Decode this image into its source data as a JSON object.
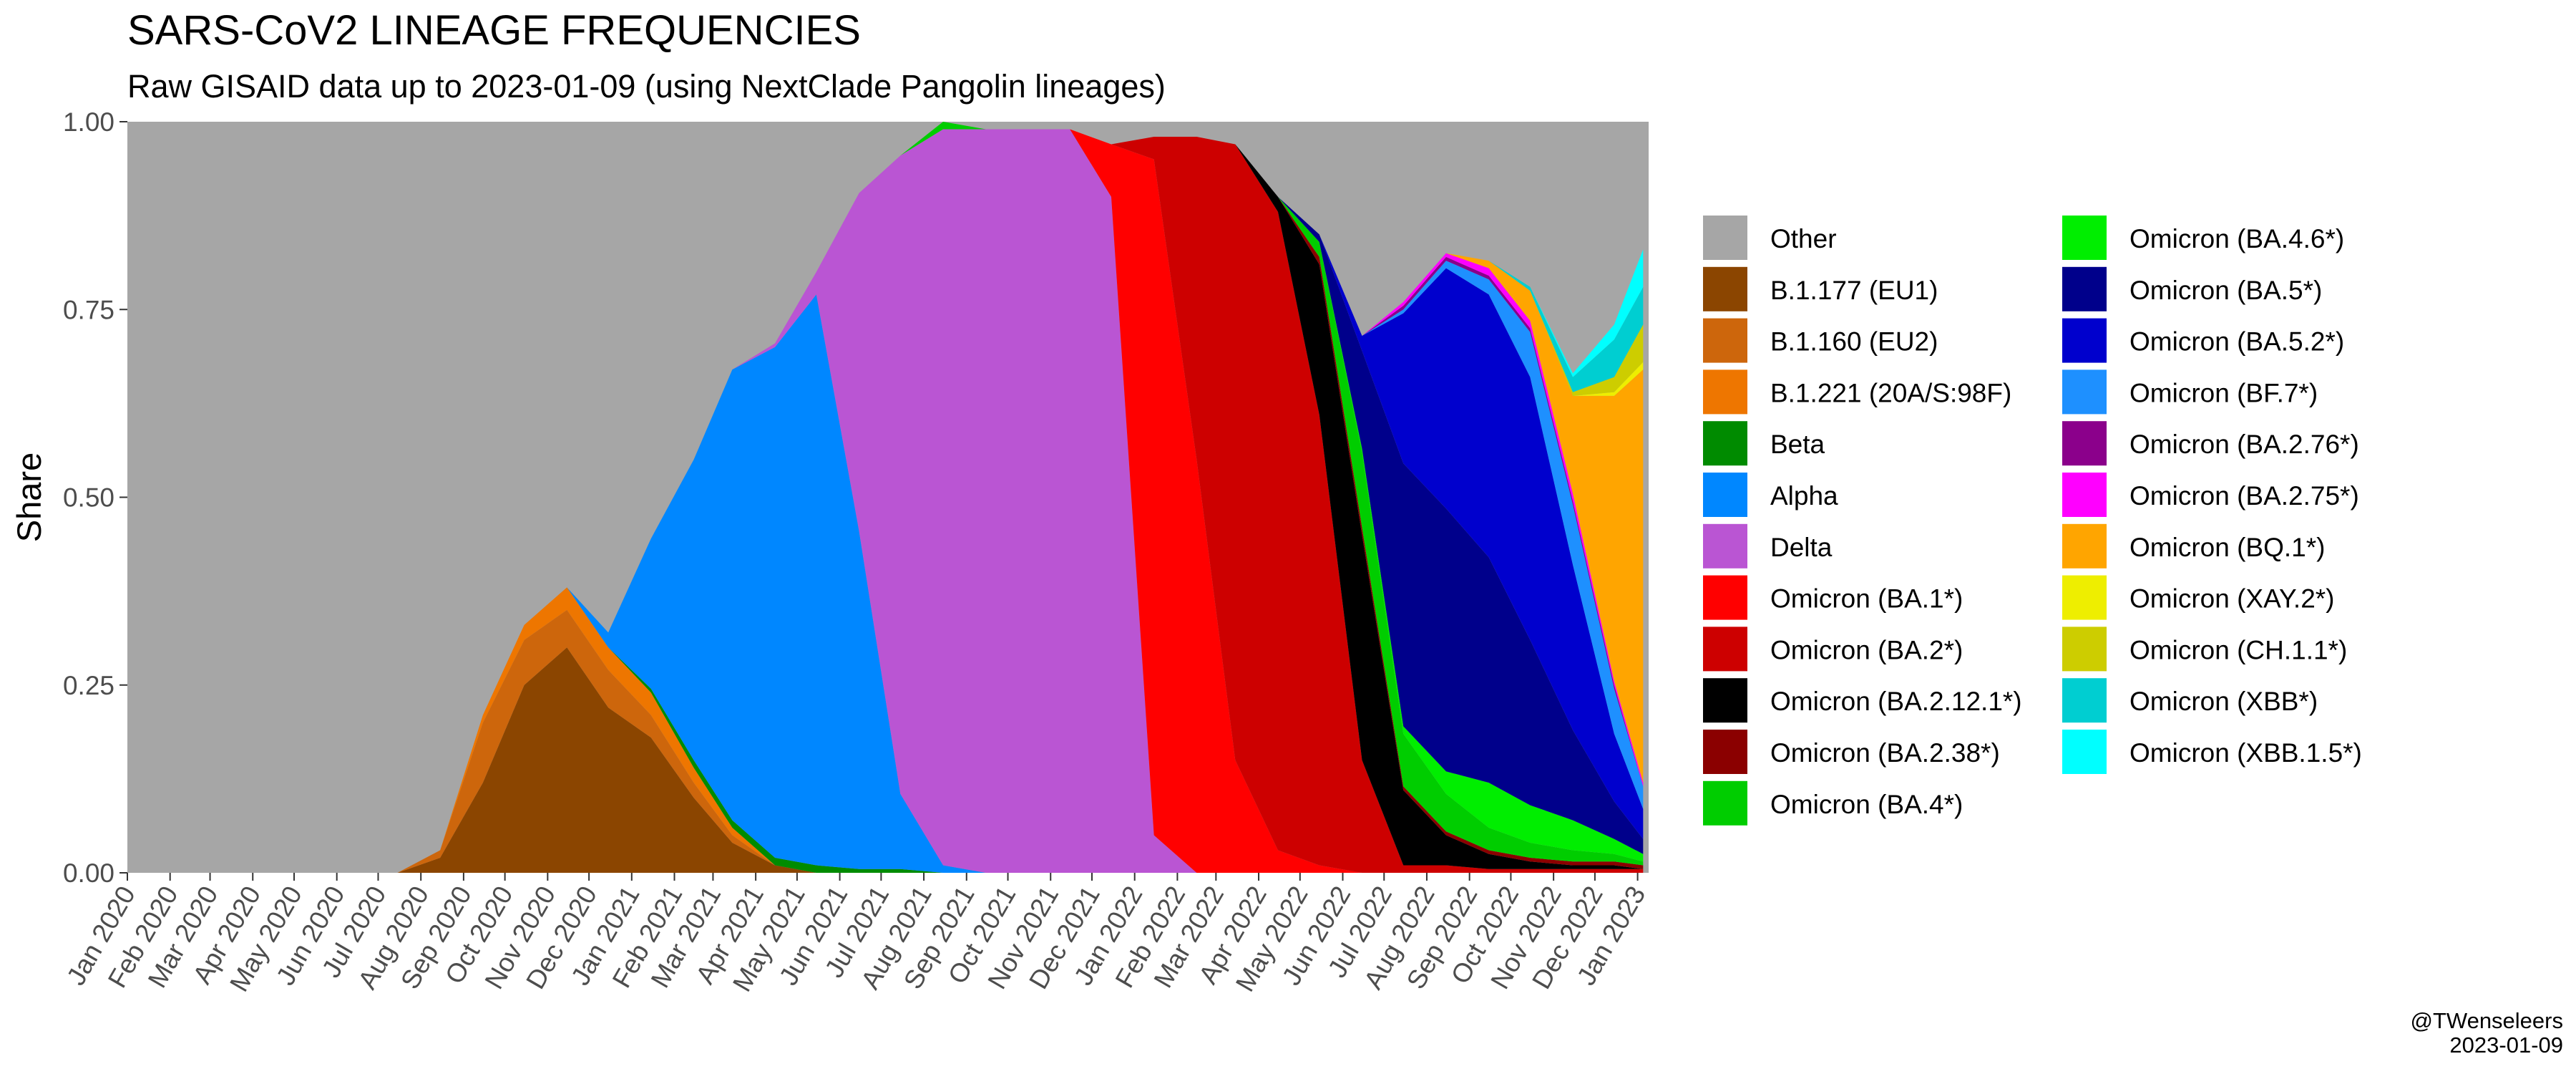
{
  "header": {
    "title": "SARS-CoV2 LINEAGE FREQUENCIES",
    "subtitle": "Raw GISAID data up to 2023-01-09 (using NextClade Pangolin lineages)"
  },
  "caption": {
    "author": "@TWenseleers",
    "date": "2023-01-09"
  },
  "chart_data": {
    "type": "area",
    "stacked": true,
    "title": "SARS-CoV2 LINEAGE FREQUENCIES",
    "subtitle": "Raw GISAID data up to 2023-01-09 (using NextClade Pangolin lineages)",
    "xlabel": "",
    "ylabel": "Share",
    "xlim": [
      "2020-01-01",
      "2023-01-09"
    ],
    "ylim": [
      0,
      1
    ],
    "x_tick_labels": [
      "Jan 2020",
      "Feb 2020",
      "Mar 2020",
      "Apr 2020",
      "May 2020",
      "Jun 2020",
      "Jul 2020",
      "Aug 2020",
      "Sep 2020",
      "Oct 2020",
      "Nov 2020",
      "Dec 2020",
      "Jan 2021",
      "Feb 2021",
      "Mar 2021",
      "Apr 2021",
      "May 2021",
      "Jun 2021",
      "Jul 2021",
      "Aug 2021",
      "Sep 2021",
      "Oct 2021",
      "Nov 2021",
      "Dec 2021",
      "Jan 2022",
      "Feb 2022",
      "Mar 2022",
      "Apr 2022",
      "May 2022",
      "Jun 2022",
      "Jul 2022",
      "Aug 2022",
      "Sep 2022",
      "Oct 2022",
      "Nov 2022",
      "Dec 2022",
      "Jan 2023"
    ],
    "y_tick_labels": [
      "0.00",
      "0.25",
      "0.50",
      "0.75",
      "1.00"
    ],
    "y_ticks": [
      0,
      0.25,
      0.5,
      0.75,
      1
    ],
    "grid": false,
    "legend_position": "right",
    "x": [
      "2020-01-15",
      "2020-07-15",
      "2020-08-15",
      "2020-09-15",
      "2020-10-15",
      "2020-11-15",
      "2020-12-15",
      "2021-01-15",
      "2021-02-15",
      "2021-03-15",
      "2021-04-15",
      "2021-05-15",
      "2021-06-15",
      "2021-07-15",
      "2021-08-15",
      "2021-09-15",
      "2021-10-15",
      "2021-11-15",
      "2021-12-15",
      "2022-01-15",
      "2022-02-15",
      "2022-03-15",
      "2022-04-15",
      "2022-05-15",
      "2022-06-15",
      "2022-07-15",
      "2022-08-15",
      "2022-09-15",
      "2022-10-15",
      "2022-11-15",
      "2022-12-15",
      "2023-01-05"
    ],
    "series": [
      {
        "name": "B.1.177 (EU1)",
        "color": "#8B4500",
        "values": [
          0,
          0,
          0.02,
          0.12,
          0.25,
          0.3,
          0.22,
          0.18,
          0.1,
          0.04,
          0.01,
          0,
          0,
          0,
          0,
          0,
          0,
          0,
          0,
          0,
          0,
          0,
          0,
          0,
          0,
          0,
          0,
          0,
          0,
          0,
          0,
          0
        ]
      },
      {
        "name": "B.1.160 (EU2)",
        "color": "#CD660C",
        "values": [
          0,
          0,
          0.01,
          0.08,
          0.06,
          0.05,
          0.05,
          0.03,
          0.02,
          0.01,
          0,
          0,
          0,
          0,
          0,
          0,
          0,
          0,
          0,
          0,
          0,
          0,
          0,
          0,
          0,
          0,
          0,
          0,
          0,
          0,
          0,
          0
        ]
      },
      {
        "name": "B.1.221 (20A/S:98F)",
        "color": "#EE7600",
        "values": [
          0,
          0,
          0,
          0.01,
          0.02,
          0.03,
          0.03,
          0.03,
          0.02,
          0.01,
          0,
          0,
          0,
          0,
          0,
          0,
          0,
          0,
          0,
          0,
          0,
          0,
          0,
          0,
          0,
          0,
          0,
          0,
          0,
          0,
          0,
          0
        ]
      },
      {
        "name": "Beta",
        "color": "#008B00",
        "values": [
          0,
          0,
          0,
          0,
          0,
          0,
          0,
          0.005,
          0.01,
          0.01,
          0.01,
          0.01,
          0.005,
          0.005,
          0,
          0,
          0,
          0,
          0,
          0,
          0,
          0,
          0,
          0,
          0,
          0,
          0,
          0,
          0,
          0,
          0,
          0
        ]
      },
      {
        "name": "Alpha",
        "color": "#0087FF",
        "values": [
          0,
          0,
          0,
          0,
          0,
          0,
          0.02,
          0.2,
          0.4,
          0.6,
          0.68,
          0.76,
          0.45,
          0.1,
          0.01,
          0,
          0,
          0,
          0,
          0,
          0,
          0,
          0,
          0,
          0,
          0,
          0,
          0,
          0,
          0,
          0,
          0
        ]
      },
      {
        "name": "Delta",
        "color": "#BA55D3",
        "values": [
          0,
          0,
          0,
          0,
          0,
          0,
          0,
          0,
          0,
          0,
          0.005,
          0.03,
          0.45,
          0.85,
          0.98,
          0.99,
          0.99,
          0.99,
          0.9,
          0.05,
          0,
          0,
          0,
          0,
          0,
          0,
          0,
          0,
          0,
          0,
          0,
          0
        ]
      },
      {
        "name": "Omicron (BA.1*)",
        "color": "#FF0000",
        "values": [
          0,
          0,
          0,
          0,
          0,
          0,
          0,
          0,
          0,
          0,
          0,
          0,
          0,
          0,
          0,
          0,
          0,
          0,
          0.07,
          0.9,
          0.55,
          0.15,
          0.03,
          0.01,
          0,
          0,
          0,
          0,
          0,
          0,
          0,
          0
        ]
      },
      {
        "name": "Omicron (BA.2*)",
        "color": "#CD0000",
        "values": [
          0,
          0,
          0,
          0,
          0,
          0,
          0,
          0,
          0,
          0,
          0,
          0,
          0,
          0,
          0,
          0,
          0,
          0,
          0,
          0.03,
          0.43,
          0.82,
          0.85,
          0.6,
          0.15,
          0.01,
          0.01,
          0.005,
          0.005,
          0.005,
          0.005,
          0.005
        ]
      },
      {
        "name": "Omicron (BA.2.12.1*)",
        "color": "#000000",
        "values": [
          0,
          0,
          0,
          0,
          0,
          0,
          0,
          0,
          0,
          0,
          0,
          0,
          0,
          0,
          0,
          0,
          0,
          0,
          0,
          0,
          0,
          0,
          0.02,
          0.2,
          0.3,
          0.1,
          0.04,
          0.02,
          0.01,
          0.005,
          0.005,
          0
        ]
      },
      {
        "name": "Omicron (BA.2.38*)",
        "color": "#8B0000",
        "values": [
          0,
          0,
          0,
          0,
          0,
          0,
          0,
          0,
          0,
          0,
          0,
          0,
          0,
          0,
          0,
          0,
          0,
          0,
          0,
          0,
          0,
          0,
          0,
          0.01,
          0.01,
          0.005,
          0.005,
          0.005,
          0.005,
          0.005,
          0.005,
          0.005
        ]
      },
      {
        "name": "Omicron (BA.4*)",
        "color": "#00CD00",
        "values": [
          0,
          0,
          0,
          0,
          0,
          0,
          0,
          0,
          0,
          0,
          0,
          0,
          0,
          0,
          0.01,
          0,
          0,
          0,
          0,
          0,
          0,
          0,
          0,
          0.02,
          0.1,
          0.07,
          0.05,
          0.03,
          0.02,
          0.015,
          0.01,
          0.005
        ]
      },
      {
        "name": "Omicron (BA.4.6*)",
        "color": "#00EE00",
        "values": [
          0,
          0,
          0,
          0,
          0,
          0,
          0,
          0,
          0,
          0,
          0,
          0,
          0,
          0,
          0,
          0,
          0,
          0,
          0,
          0,
          0,
          0,
          0,
          0,
          0.005,
          0.01,
          0.03,
          0.06,
          0.05,
          0.04,
          0.02,
          0.01
        ]
      },
      {
        "name": "Omicron (BA.5*)",
        "color": "#00008B",
        "values": [
          0,
          0,
          0,
          0,
          0,
          0,
          0,
          0,
          0,
          0,
          0,
          0,
          0,
          0,
          0,
          0,
          0,
          0,
          0,
          0,
          0,
          0,
          0,
          0.01,
          0.13,
          0.35,
          0.35,
          0.3,
          0.22,
          0.12,
          0.05,
          0.02
        ]
      },
      {
        "name": "Omicron (BA.5.2*)",
        "color": "#0000CD",
        "values": [
          0,
          0,
          0,
          0,
          0,
          0,
          0,
          0,
          0,
          0,
          0,
          0,
          0,
          0,
          0,
          0,
          0,
          0,
          0,
          0,
          0,
          0,
          0,
          0,
          0.02,
          0.2,
          0.32,
          0.35,
          0.35,
          0.22,
          0.09,
          0.04
        ]
      },
      {
        "name": "Omicron (BF.7*)",
        "color": "#1E90FF",
        "values": [
          0,
          0,
          0,
          0,
          0,
          0,
          0,
          0,
          0,
          0,
          0,
          0,
          0,
          0,
          0,
          0,
          0,
          0,
          0,
          0,
          0,
          0,
          0,
          0,
          0,
          0.005,
          0.01,
          0.02,
          0.06,
          0.08,
          0.06,
          0.03
        ]
      },
      {
        "name": "Omicron (BA.2.76*)",
        "color": "#8B008B",
        "values": [
          0,
          0,
          0,
          0,
          0,
          0,
          0,
          0,
          0,
          0,
          0,
          0,
          0,
          0,
          0,
          0,
          0,
          0,
          0,
          0,
          0,
          0,
          0,
          0,
          0,
          0.005,
          0.005,
          0.005,
          0.005,
          0.005,
          0.005,
          0
        ]
      },
      {
        "name": "Omicron (BA.2.75*)",
        "color": "#FF00FF",
        "values": [
          0,
          0,
          0,
          0,
          0,
          0,
          0,
          0,
          0,
          0,
          0,
          0,
          0,
          0,
          0,
          0,
          0,
          0,
          0,
          0,
          0,
          0,
          0,
          0,
          0,
          0.005,
          0.005,
          0.01,
          0.01,
          0.01,
          0.005,
          0.005
        ]
      },
      {
        "name": "Omicron (BQ.1*)",
        "color": "#FFA500",
        "values": [
          0,
          0,
          0,
          0,
          0,
          0,
          0,
          0,
          0,
          0,
          0,
          0,
          0,
          0,
          0,
          0,
          0,
          0,
          0,
          0,
          0,
          0,
          0,
          0,
          0,
          0,
          0,
          0.01,
          0.04,
          0.13,
          0.38,
          0.55
        ]
      },
      {
        "name": "Omicron (XAY.2*)",
        "color": "#EEEE00",
        "values": [
          0,
          0,
          0,
          0,
          0,
          0,
          0,
          0,
          0,
          0,
          0,
          0,
          0,
          0,
          0,
          0,
          0,
          0,
          0,
          0,
          0,
          0,
          0,
          0,
          0,
          0,
          0,
          0,
          0,
          0,
          0.005,
          0.01
        ]
      },
      {
        "name": "Omicron (CH.1.1*)",
        "color": "#CDCD00",
        "values": [
          0,
          0,
          0,
          0,
          0,
          0,
          0,
          0,
          0,
          0,
          0,
          0,
          0,
          0,
          0,
          0,
          0,
          0,
          0,
          0,
          0,
          0,
          0,
          0,
          0,
          0,
          0,
          0,
          0,
          0.005,
          0.02,
          0.05
        ]
      },
      {
        "name": "Omicron (XBB*)",
        "color": "#00CED1",
        "values": [
          0,
          0,
          0,
          0,
          0,
          0,
          0,
          0,
          0,
          0,
          0,
          0,
          0,
          0,
          0,
          0,
          0,
          0,
          0,
          0,
          0,
          0,
          0,
          0,
          0,
          0,
          0,
          0,
          0.005,
          0.02,
          0.05,
          0.05
        ]
      },
      {
        "name": "Omicron (XBB.1.5*)",
        "color": "#00FFFF",
        "values": [
          0,
          0,
          0,
          0,
          0,
          0,
          0,
          0,
          0,
          0,
          0,
          0,
          0,
          0,
          0,
          0,
          0,
          0,
          0,
          0,
          0,
          0,
          0,
          0,
          0,
          0,
          0,
          0,
          0,
          0.005,
          0.02,
          0.05
        ]
      }
    ],
    "other": {
      "name": "Other",
      "color": "#A6A6A6"
    },
    "legend_order": [
      "Other",
      "B.1.177 (EU1)",
      "B.1.160 (EU2)",
      "B.1.221 (20A/S:98F)",
      "Beta",
      "Alpha",
      "Delta",
      "Omicron (BA.1*)",
      "Omicron (BA.2*)",
      "Omicron (BA.2.12.1*)",
      "Omicron (BA.2.38*)",
      "Omicron (BA.4*)",
      "Omicron (BA.4.6*)",
      "Omicron (BA.5*)",
      "Omicron (BA.5.2*)",
      "Omicron (BF.7*)",
      "Omicron (BA.2.76*)",
      "Omicron (BA.2.75*)",
      "Omicron (BQ.1*)",
      "Omicron (XAY.2*)",
      "Omicron (CH.1.1*)",
      "Omicron (XBB*)",
      "Omicron (XBB.1.5*)"
    ]
  }
}
